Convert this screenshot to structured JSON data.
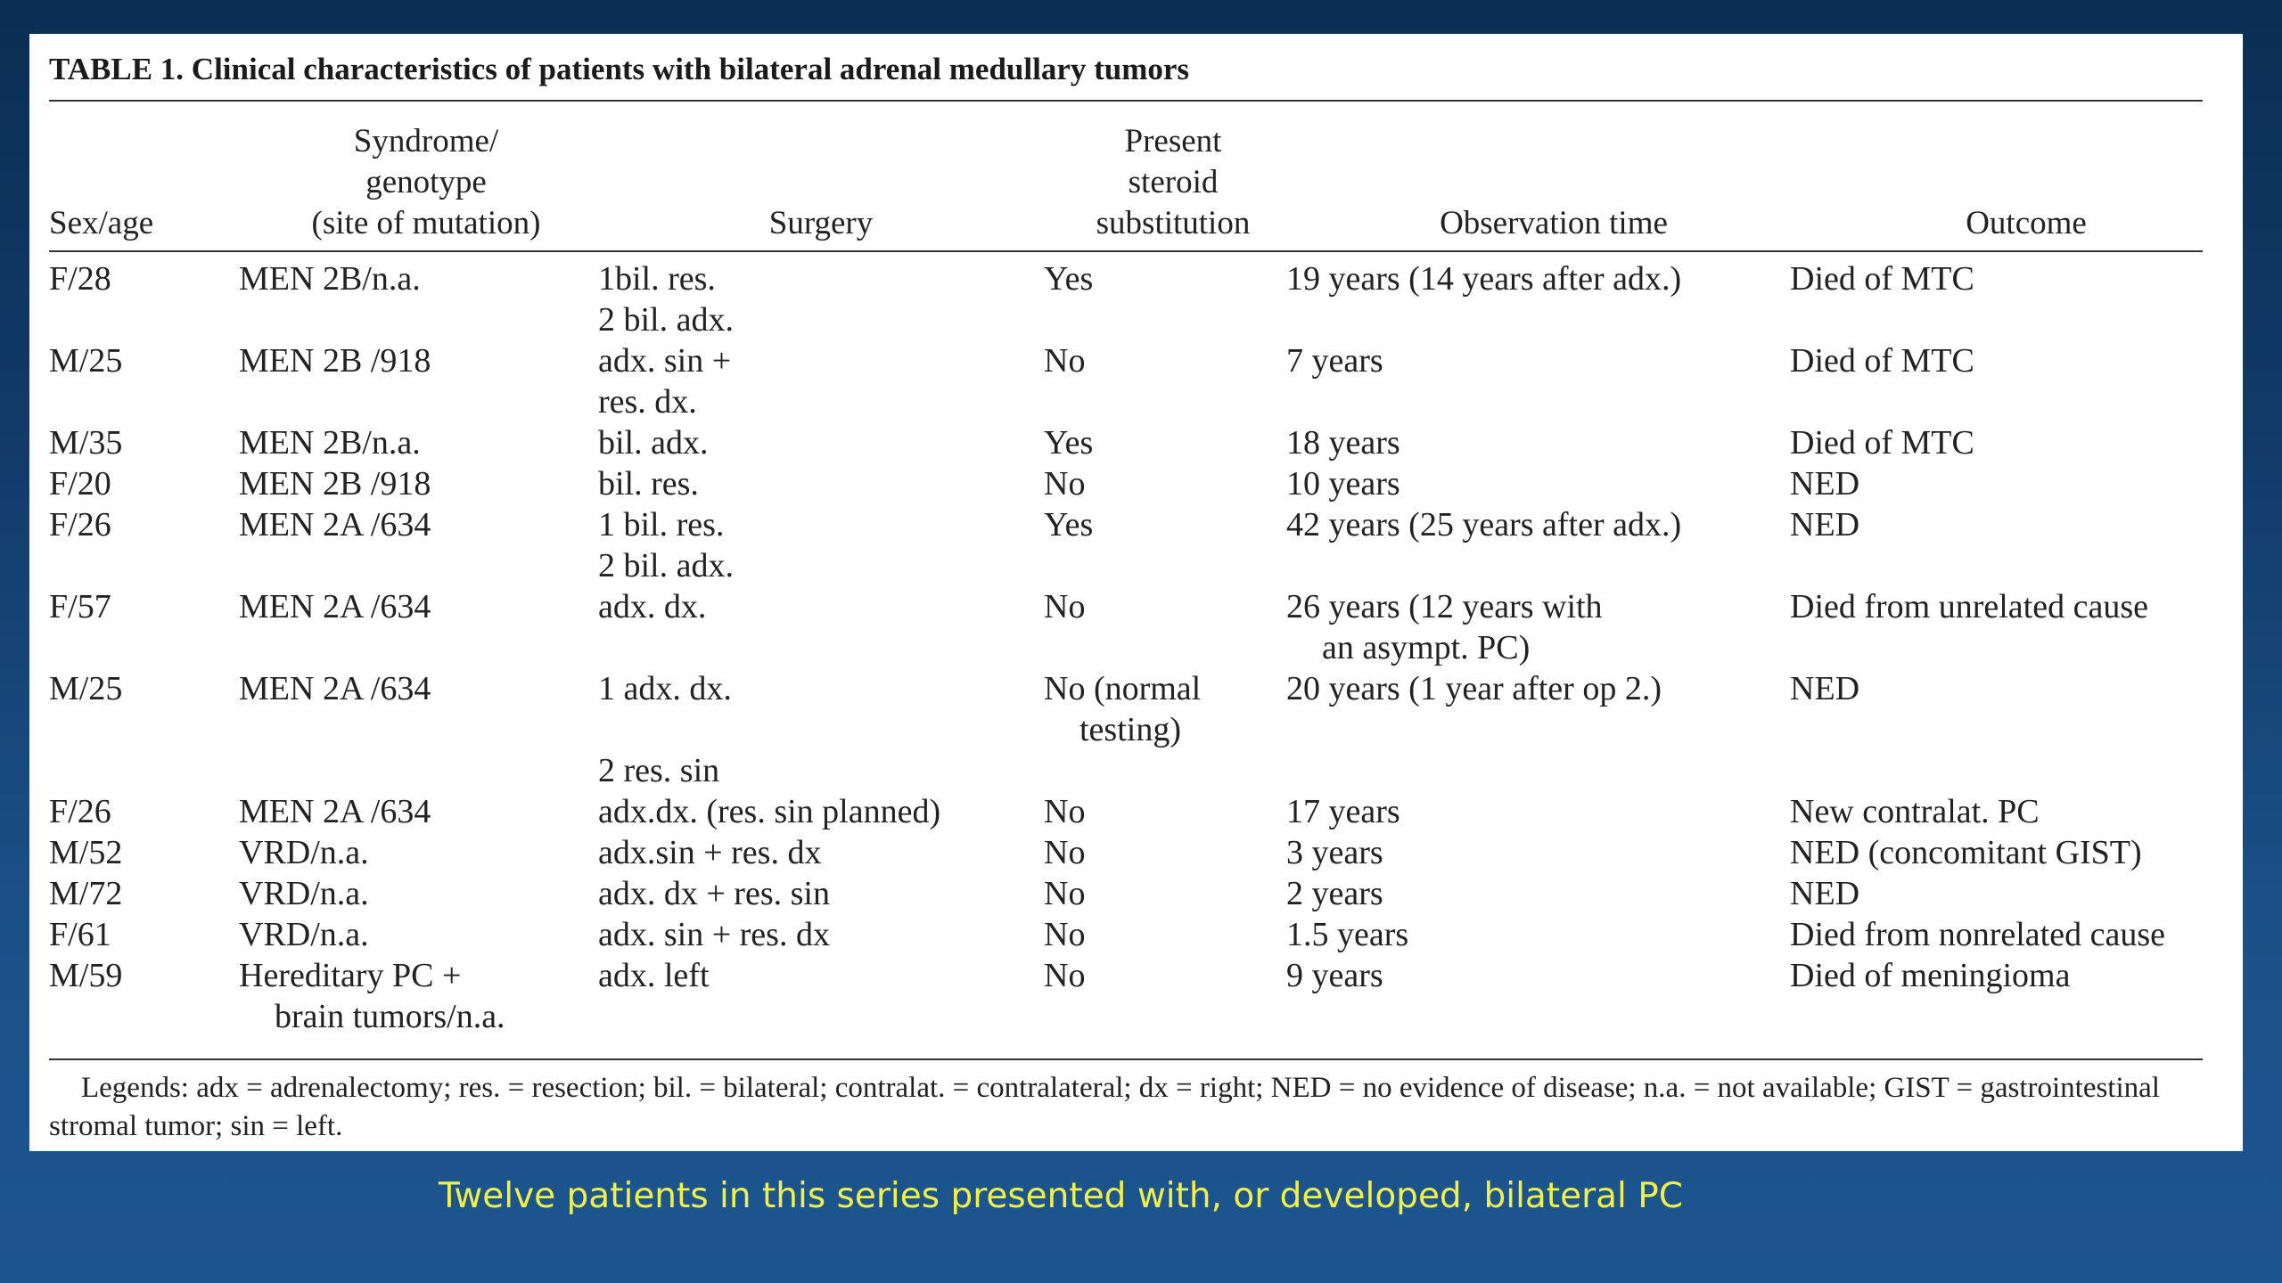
{
  "title": "TABLE 1. Clinical characteristics of patients with bilateral adrenal medullary tumors",
  "headers": {
    "sex_age": [
      "Sex/age"
    ],
    "syndrome": [
      "Syndrome/",
      "genotype",
      "(site of mutation)"
    ],
    "surgery": [
      "Surgery"
    ],
    "steroid": [
      "Present",
      "steroid",
      "substitution"
    ],
    "observation": [
      "Observation time"
    ],
    "outcome": [
      "Outcome"
    ]
  },
  "rows": [
    {
      "sex_age": [
        "F/28"
      ],
      "syndrome": [
        "MEN 2B/n.a."
      ],
      "surgery": [
        "1bil. res.",
        "2 bil. adx."
      ],
      "steroid": [
        "Yes"
      ],
      "observation": [
        "19 years (14 years after adx.)"
      ],
      "outcome": [
        "Died of MTC"
      ]
    },
    {
      "sex_age": [
        "M/25"
      ],
      "syndrome": [
        "MEN 2B /918"
      ],
      "surgery": [
        "adx. sin +",
        "res. dx."
      ],
      "steroid": [
        "No"
      ],
      "observation": [
        "7 years"
      ],
      "outcome": [
        "Died of MTC"
      ]
    },
    {
      "sex_age": [
        "M/35"
      ],
      "syndrome": [
        "MEN 2B/n.a."
      ],
      "surgery": [
        "bil. adx."
      ],
      "steroid": [
        "Yes"
      ],
      "observation": [
        "18 years"
      ],
      "outcome": [
        "Died of MTC"
      ]
    },
    {
      "sex_age": [
        "F/20"
      ],
      "syndrome": [
        "MEN 2B /918"
      ],
      "surgery": [
        "bil. res."
      ],
      "steroid": [
        "No"
      ],
      "observation": [
        "10 years"
      ],
      "outcome": [
        "NED"
      ]
    },
    {
      "sex_age": [
        "F/26"
      ],
      "syndrome": [
        "MEN 2A /634"
      ],
      "surgery": [
        "1 bil. res.",
        "2 bil. adx."
      ],
      "steroid": [
        "Yes"
      ],
      "observation": [
        "42 years (25 years after adx.)"
      ],
      "outcome": [
        "NED"
      ]
    },
    {
      "sex_age": [
        "F/57"
      ],
      "syndrome": [
        "MEN 2A /634"
      ],
      "surgery": [
        "adx. dx."
      ],
      "steroid": [
        "No"
      ],
      "observation": [
        "26 years (12 years with",
        "an asympt. PC)"
      ],
      "outcome": [
        "Died from unrelated cause"
      ]
    },
    {
      "sex_age": [
        "M/25"
      ],
      "syndrome": [
        "MEN 2A /634"
      ],
      "surgery": [
        "1 adx. dx.",
        "",
        "2 res. sin"
      ],
      "steroid": [
        "No (normal",
        "testing)"
      ],
      "observation": [
        "20 years (1 year after op 2.)"
      ],
      "outcome": [
        "NED"
      ]
    },
    {
      "sex_age": [
        "F/26"
      ],
      "syndrome": [
        "MEN 2A /634"
      ],
      "surgery": [
        "adx.dx. (res. sin planned)"
      ],
      "steroid": [
        "No"
      ],
      "observation": [
        "17 years"
      ],
      "outcome": [
        "New contralat. PC"
      ]
    },
    {
      "sex_age": [
        "M/52"
      ],
      "syndrome": [
        "VRD/n.a."
      ],
      "surgery": [
        "adx.sin + res. dx"
      ],
      "steroid": [
        "No"
      ],
      "observation": [
        "3 years"
      ],
      "outcome": [
        "NED (concomitant GIST)"
      ]
    },
    {
      "sex_age": [
        "M/72"
      ],
      "syndrome": [
        "VRD/n.a."
      ],
      "surgery": [
        "adx. dx + res. sin"
      ],
      "steroid": [
        "No"
      ],
      "observation": [
        "2 years"
      ],
      "outcome": [
        "NED"
      ]
    },
    {
      "sex_age": [
        "F/61"
      ],
      "syndrome": [
        "VRD/n.a."
      ],
      "surgery": [
        "adx. sin + res. dx"
      ],
      "steroid": [
        "No"
      ],
      "observation": [
        "1.5 years"
      ],
      "outcome": [
        "Died from nonrelated cause"
      ]
    },
    {
      "sex_age": [
        "M/59"
      ],
      "syndrome": [
        "Hereditary PC +",
        "brain tumors/n.a."
      ],
      "surgery": [
        "adx. left"
      ],
      "steroid": [
        "No"
      ],
      "observation": [
        "9 years"
      ],
      "outcome": [
        "Died of meningioma"
      ]
    }
  ],
  "legend": "Legends: adx = adrenalectomy; res. = resection; bil. = bilateral; contralat. = contralateral; dx = right; NED = no evidence of disease; n.a. = not available; GIST = gastrointestinal stromal tumor; sin = left.",
  "caption": "Twelve patients in this series presented with, or developed, bilateral PC"
}
